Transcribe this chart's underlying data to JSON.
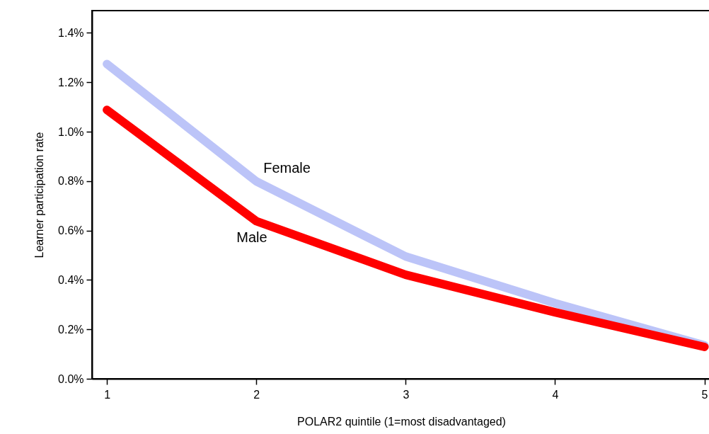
{
  "chart_data": {
    "type": "line",
    "xlabel": "POLAR2 quintile (1=most disadvantaged)",
    "ylabel": "Learner participation rate",
    "x": [
      1,
      2,
      3,
      4,
      5
    ],
    "series": [
      {
        "name": "Female",
        "color": "#bcc4f8",
        "values": [
          1.274,
          0.799,
          0.495,
          0.306,
          0.135
        ]
      },
      {
        "name": "Male",
        "color": "#ff0000",
        "values": [
          1.088,
          0.638,
          0.421,
          0.269,
          0.129
        ]
      }
    ],
    "xlim": [
      0.9,
      5.04
    ],
    "xticks": [
      1,
      2,
      3,
      4,
      5
    ],
    "ylim": [
      0,
      1.49
    ],
    "yticks": [
      {
        "value": 0,
        "label": "0.0%"
      },
      {
        "value": 0.2,
        "label": "0.2%"
      },
      {
        "value": 0.4,
        "label": "0.4%"
      },
      {
        "value": 0.6,
        "label": "0.6%"
      },
      {
        "value": 0.8,
        "label": "0.8%"
      },
      {
        "value": 1.0,
        "label": "1.0%"
      },
      {
        "value": 1.2,
        "label": "1.2%"
      },
      {
        "value": 1.4,
        "label": "1.4%"
      }
    ]
  }
}
